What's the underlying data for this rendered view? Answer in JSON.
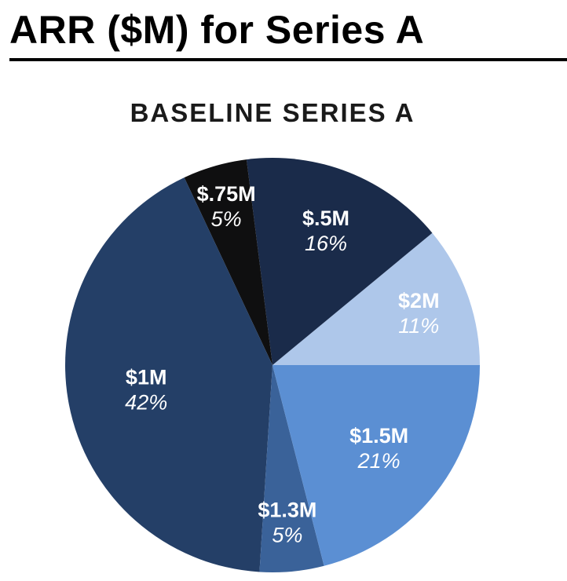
{
  "page": {
    "title": "ARR ($M) for Series A"
  },
  "chart_data": {
    "type": "pie",
    "title": "BASELINE SERIES A",
    "slices": [
      {
        "label": "$2M",
        "percent": "11%",
        "value": 11,
        "color": "#aec7ea"
      },
      {
        "label": "$.5M",
        "percent": "16%",
        "value": 16,
        "color": "#1a2b4a"
      },
      {
        "label": "$.75M",
        "percent": "5%",
        "value": 5,
        "color": "#0f0f10"
      },
      {
        "label": "$1M",
        "percent": "42%",
        "value": 42,
        "color": "#243f67"
      },
      {
        "label": "$1.3M",
        "percent": "5%",
        "value": 5,
        "color": "#3a6299"
      },
      {
        "label": "$1.5M",
        "percent": "21%",
        "value": 21,
        "color": "#5b8fd3"
      }
    ]
  }
}
